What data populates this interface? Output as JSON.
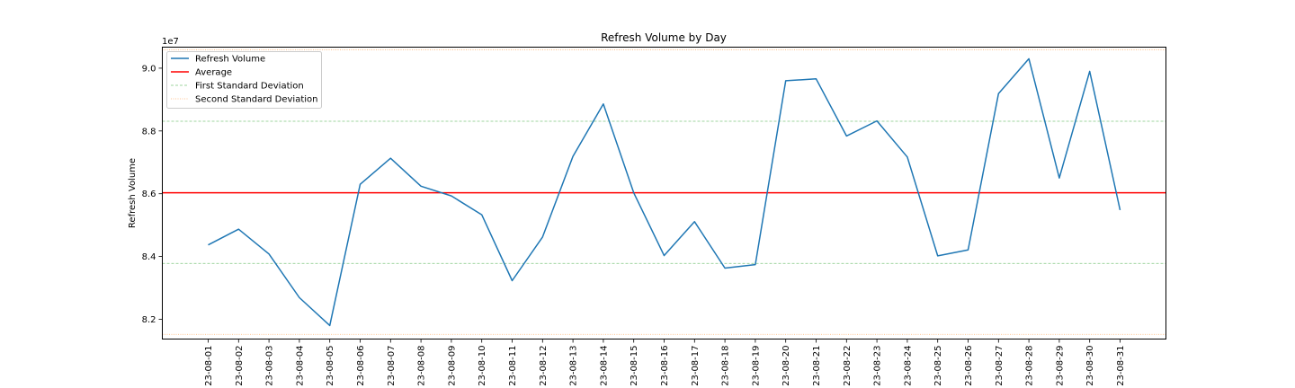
{
  "chart_data": {
    "type": "line",
    "title": "Refresh Volume by Day",
    "xlabel": "",
    "ylabel": "Refresh Volume",
    "y_offset_label": "1e7",
    "y_scale": 10000000,
    "ylim": [
      8.137,
      9.067
    ],
    "yticks": [
      8.2,
      8.4,
      8.6,
      8.8,
      9.0
    ],
    "ytick_labels": [
      "8.2",
      "8.4",
      "8.6",
      "8.8",
      "9.0"
    ],
    "categories": [
      "23-08-01",
      "23-08-02",
      "23-08-03",
      "23-08-04",
      "23-08-05",
      "23-08-06",
      "23-08-07",
      "23-08-08",
      "23-08-09",
      "23-08-10",
      "23-08-11",
      "23-08-12",
      "23-08-13",
      "23-08-14",
      "23-08-15",
      "23-08-16",
      "23-08-17",
      "23-08-18",
      "23-08-19",
      "23-08-20",
      "23-08-21",
      "23-08-22",
      "23-08-23",
      "23-08-24",
      "23-08-25",
      "23-08-26",
      "23-08-27",
      "23-08-28",
      "23-08-29",
      "23-08-30",
      "23-08-31"
    ],
    "series": [
      {
        "name": "Refresh Volume",
        "color": "#1f77b4",
        "values": [
          8.437,
          8.487,
          8.408,
          8.269,
          8.18,
          8.63,
          8.713,
          8.624,
          8.593,
          8.533,
          8.323,
          8.462,
          8.719,
          8.886,
          8.603,
          8.403,
          8.511,
          8.363,
          8.374,
          8.96,
          8.966,
          8.784,
          8.832,
          8.717,
          8.402,
          8.421,
          8.919,
          9.03,
          8.65,
          8.99,
          8.548
        ]
      }
    ],
    "reference_lines": [
      {
        "name": "Average",
        "value": 8.603,
        "color": "#ff0000",
        "style": "solid"
      },
      {
        "name": "First Standard Deviation",
        "value": 8.831,
        "color": "#2ca02c",
        "style": "dashed"
      },
      {
        "name": "First Standard Deviation",
        "value": 8.378,
        "color": "#2ca02c",
        "style": "dashed"
      },
      {
        "name": "Second Standard Deviation",
        "value": 9.059,
        "color": "#ff7f0e",
        "style": "dotted"
      },
      {
        "name": "Second Standard Deviation",
        "value": 8.152,
        "color": "#ff7f0e",
        "style": "dotted"
      }
    ],
    "legend": {
      "placement": "upper-left",
      "entries": [
        {
          "label": "Refresh Volume",
          "color": "#1f77b4",
          "style": "solid"
        },
        {
          "label": "Average",
          "color": "#ff0000",
          "style": "solid"
        },
        {
          "label": "First Standard Deviation",
          "color": "#2ca02c",
          "style": "dashed"
        },
        {
          "label": "Second Standard Deviation",
          "color": "#ff7f0e",
          "style": "dotted"
        }
      ]
    },
    "grid": false
  }
}
